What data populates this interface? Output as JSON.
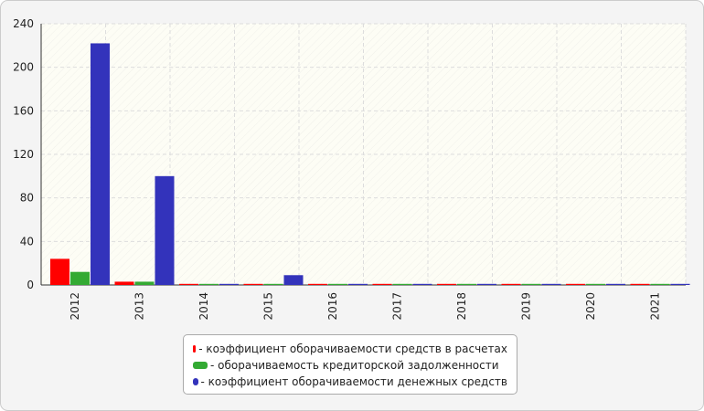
{
  "chart_data": {
    "type": "bar",
    "categories": [
      "2012",
      "2013",
      "2014",
      "2015",
      "2016",
      "2017",
      "2018",
      "2019",
      "2020",
      "2021"
    ],
    "series": [
      {
        "name": "- коэффициент оборачиваемости средств в расчетах",
        "color": "#ff0000",
        "values": [
          24,
          3,
          1,
          1,
          1,
          1,
          1,
          1,
          1,
          1
        ]
      },
      {
        "name": "- оборачиваемость кредиторской задолженности",
        "color": "#33aa33",
        "values": [
          12,
          3,
          1,
          1,
          1,
          1,
          1,
          1,
          1,
          1
        ]
      },
      {
        "name": "- коэффициент оборачиваемости денежных средств",
        "color": "#3333bb",
        "values": [
          222,
          100,
          1,
          9,
          1,
          1,
          1,
          1,
          1,
          1
        ]
      }
    ],
    "ylim": [
      0,
      240
    ],
    "yticks": [
      0,
      40,
      80,
      120,
      160,
      200,
      240
    ],
    "grid": true
  }
}
